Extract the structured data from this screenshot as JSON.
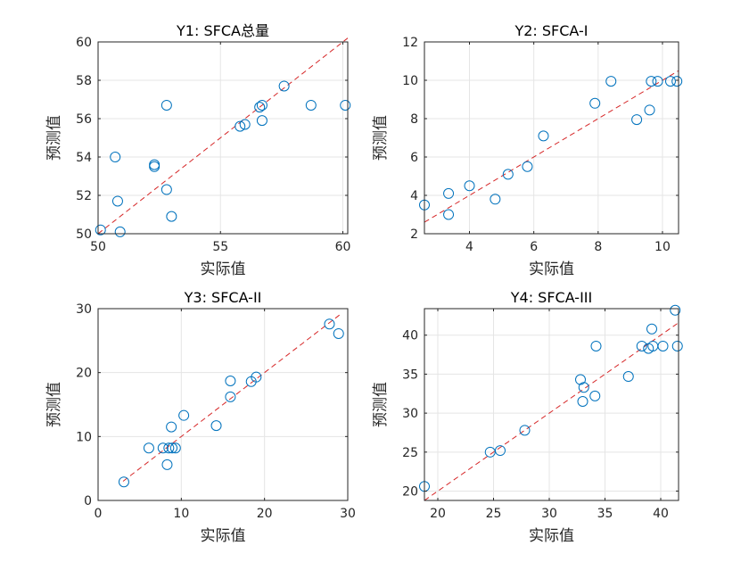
{
  "colors": {
    "marker": "#0072BD",
    "fit_line": "#D62728",
    "grid": "#E5E5E5",
    "axis": "#262626"
  },
  "chart_data": [
    {
      "type": "scatter",
      "title": "Y1: SFCA总量",
      "xlabel": "实际值",
      "ylabel": "预测值",
      "xlim": [
        50,
        60.2
      ],
      "ylim": [
        50,
        60
      ],
      "xticks": [
        50,
        55,
        60
      ],
      "yticks": [
        50,
        52,
        54,
        56,
        58,
        60
      ],
      "grid": true,
      "fit_line": [
        [
          50,
          50
        ],
        [
          60.2,
          60.2
        ]
      ],
      "x": [
        50.1,
        50.7,
        50.8,
        50.9,
        52.3,
        52.3,
        52.8,
        52.8,
        53.0,
        55.8,
        56.0,
        56.6,
        56.7,
        56.7,
        57.6,
        58.7,
        60.1
      ],
      "y": [
        50.2,
        54.0,
        51.7,
        50.1,
        53.5,
        53.6,
        52.3,
        56.7,
        50.9,
        55.6,
        55.7,
        56.6,
        56.7,
        55.9,
        57.7,
        56.7,
        56.7
      ]
    },
    {
      "type": "scatter",
      "title": "Y2: SFCA-I",
      "xlabel": "实际值",
      "ylabel": "预测值",
      "xlim": [
        2.6,
        10.5
      ],
      "ylim": [
        2,
        12
      ],
      "xticks": [
        4,
        6,
        8,
        10
      ],
      "yticks": [
        2,
        4,
        6,
        8,
        10,
        12
      ],
      "grid": true,
      "fit_line": [
        [
          2.6,
          2.6
        ],
        [
          10.5,
          10.5
        ]
      ],
      "x": [
        2.6,
        3.35,
        3.35,
        4.0,
        4.8,
        5.2,
        5.8,
        6.3,
        7.9,
        8.4,
        9.2,
        9.6,
        9.65,
        9.85,
        10.25,
        10.45
      ],
      "y": [
        3.5,
        4.1,
        3.0,
        4.5,
        3.8,
        5.1,
        5.5,
        7.1,
        8.8,
        9.95,
        7.95,
        8.45,
        9.95,
        9.95,
        9.95,
        9.95
      ]
    },
    {
      "type": "scatter",
      "title": "Y3: SFCA-II",
      "xlabel": "实际值",
      "ylabel": "预测值",
      "xlim": [
        0,
        30
      ],
      "ylim": [
        0,
        30
      ],
      "xticks": [
        0,
        10,
        20,
        30
      ],
      "yticks": [
        0,
        10,
        20,
        30
      ],
      "grid": true,
      "fit_line": [
        [
          3,
          3
        ],
        [
          29,
          29
        ]
      ],
      "x": [
        3.1,
        6.1,
        7.8,
        8.3,
        8.5,
        8.8,
        8.9,
        9.3,
        10.3,
        14.2,
        15.9,
        15.9,
        18.4,
        19.0,
        27.8,
        28.9
      ],
      "y": [
        2.9,
        8.2,
        8.2,
        5.6,
        8.2,
        11.5,
        8.2,
        8.2,
        13.3,
        11.7,
        16.2,
        18.7,
        18.6,
        19.3,
        27.6,
        26.1
      ]
    },
    {
      "type": "scatter",
      "title": "Y4: SFCA-III",
      "xlabel": "实际值",
      "ylabel": "预测值",
      "xlim": [
        18.8,
        41.6
      ],
      "ylim": [
        18.8,
        43.4
      ],
      "xticks": [
        20,
        25,
        30,
        35,
        40
      ],
      "yticks": [
        20,
        25,
        30,
        35,
        40
      ],
      "grid": true,
      "fit_line": [
        [
          18.8,
          18.8
        ],
        [
          41.6,
          41.6
        ]
      ],
      "x": [
        18.8,
        24.7,
        25.6,
        27.8,
        32.8,
        33.0,
        33.1,
        34.1,
        34.2,
        37.1,
        38.3,
        38.9,
        39.2,
        39.3,
        40.2,
        41.3,
        41.5
      ],
      "y": [
        20.6,
        25.0,
        25.2,
        27.8,
        34.3,
        31.5,
        33.3,
        32.2,
        38.6,
        34.7,
        38.6,
        38.3,
        40.8,
        38.6,
        38.6,
        43.2,
        38.6
      ]
    }
  ]
}
